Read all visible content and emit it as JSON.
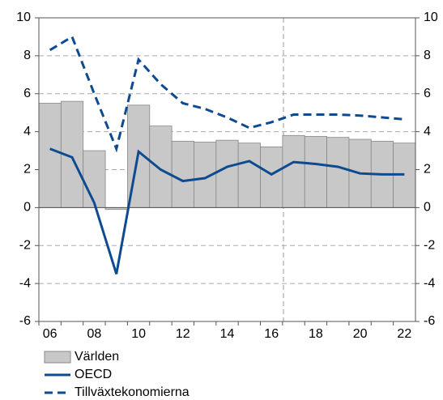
{
  "chart_data": {
    "type": "bar_line",
    "categories": [
      "06",
      null,
      "08",
      null,
      "10",
      null,
      "12",
      null,
      "14",
      null,
      "16",
      null,
      "18",
      null,
      "20",
      null,
      "22"
    ],
    "series": [
      {
        "name": "Världen",
        "type": "bar",
        "color": "#c8c8c8",
        "values": [
          5.5,
          5.6,
          3.0,
          -0.1,
          5.4,
          4.3,
          3.5,
          3.45,
          3.55,
          3.4,
          3.2,
          3.8,
          3.75,
          3.7,
          3.6,
          3.5,
          3.4
        ]
      },
      {
        "name": "OECD",
        "type": "line",
        "color": "#0d4a8f",
        "values": [
          3.1,
          2.65,
          0.25,
          -3.5,
          2.95,
          2.0,
          1.4,
          1.55,
          2.15,
          2.45,
          1.75,
          2.4,
          2.3,
          2.15,
          1.8,
          1.75,
          1.75
        ]
      },
      {
        "name": "Tillväxtekonomierna",
        "type": "line",
        "dashed": true,
        "color": "#0d4a8f",
        "values": [
          8.3,
          9.0,
          6.0,
          3.1,
          7.8,
          6.5,
          5.5,
          5.2,
          4.75,
          4.2,
          4.5,
          4.9,
          4.9,
          4.9,
          4.85,
          4.75,
          4.65
        ]
      }
    ],
    "ylim": [
      -6,
      10
    ],
    "yticks": [
      -6,
      -4,
      -2,
      0,
      2,
      4,
      6,
      8,
      10
    ],
    "y2lim": [
      -6,
      10
    ],
    "y2ticks": [
      -6,
      -4,
      -2,
      0,
      2,
      4,
      6,
      8,
      10
    ],
    "grid": true,
    "legend": "bottom-left"
  }
}
